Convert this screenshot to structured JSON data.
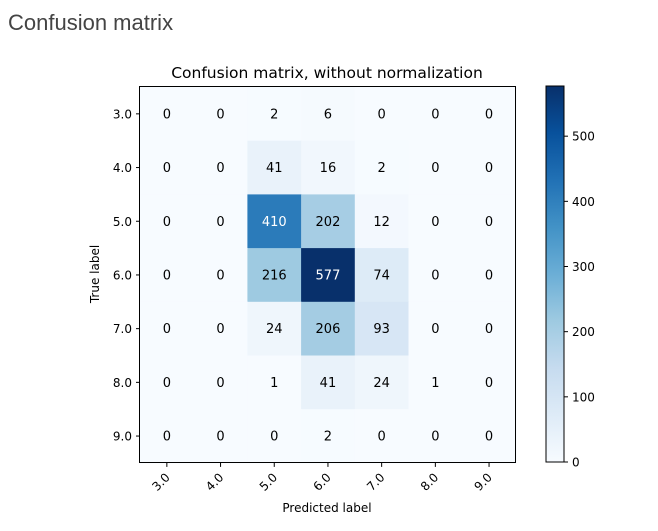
{
  "page": {
    "title": "Confusion matrix"
  },
  "chart_data": {
    "type": "heatmap",
    "title": "Confusion matrix, without normalization",
    "xlabel": "Predicted label",
    "ylabel": "True label",
    "x_labels": [
      "3.0",
      "4.0",
      "5.0",
      "6.0",
      "7.0",
      "8.0",
      "9.0"
    ],
    "y_labels": [
      "3.0",
      "4.0",
      "5.0",
      "6.0",
      "7.0",
      "8.0",
      "9.0"
    ],
    "values": [
      [
        0,
        0,
        2,
        6,
        0,
        0,
        0
      ],
      [
        0,
        0,
        41,
        16,
        2,
        0,
        0
      ],
      [
        0,
        0,
        410,
        202,
        12,
        0,
        0
      ],
      [
        0,
        0,
        216,
        577,
        74,
        0,
        0
      ],
      [
        0,
        0,
        24,
        206,
        93,
        0,
        0
      ],
      [
        0,
        0,
        1,
        41,
        24,
        1,
        0
      ],
      [
        0,
        0,
        0,
        2,
        0,
        0,
        0
      ]
    ],
    "colormap": "Blues",
    "colorbar": {
      "range": [
        0,
        577
      ],
      "ticks": [
        0,
        100,
        200,
        300,
        400,
        500
      ]
    },
    "text_colors": {
      "light_cell": "#000000",
      "dark_cell": "#ffffff"
    },
    "ylim": [
      0,
      577
    ]
  }
}
